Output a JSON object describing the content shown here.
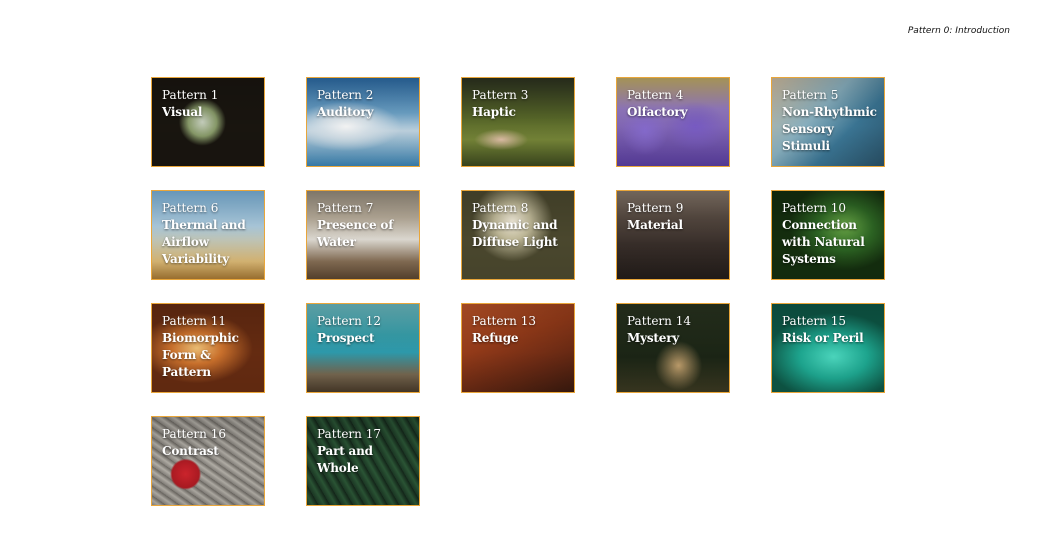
{
  "header": {
    "title": "Pattern 0: Introduction"
  },
  "tiles": [
    {
      "number": "Pattern 1",
      "label": "Visual",
      "image": "img-visual"
    },
    {
      "number": "Pattern 2",
      "label": "Auditory",
      "image": "img-auditory"
    },
    {
      "number": "Pattern 3",
      "label": "Haptic",
      "image": "img-haptic"
    },
    {
      "number": "Pattern 4",
      "label": "Olfactory",
      "image": "img-olfactory"
    },
    {
      "number": "Pattern 5",
      "label": "Non-Rhythmic Sensory Stimuli",
      "image": "img-nonrhythmic"
    },
    {
      "number": "Pattern 6",
      "label": "Thermal and Airflow Variability",
      "image": "img-thermal"
    },
    {
      "number": "Pattern 7",
      "label": "Presence of Water",
      "image": "img-water"
    },
    {
      "number": "Pattern 8",
      "label": "Dynamic and Diffuse Light",
      "image": "img-light"
    },
    {
      "number": "Pattern 9",
      "label": "Material",
      "image": "img-material"
    },
    {
      "number": "Pattern 10",
      "label": "Connection with Natural Systems",
      "image": "img-natural"
    },
    {
      "number": "Pattern 11",
      "label": "Biomorphic Form & Pattern",
      "image": "img-biomorphic"
    },
    {
      "number": "Pattern 12",
      "label": "Prospect",
      "image": "img-prospect"
    },
    {
      "number": "Pattern 13",
      "label": "Refuge",
      "image": "img-refuge"
    },
    {
      "number": "Pattern 14",
      "label": "Mystery",
      "image": "img-mystery"
    },
    {
      "number": "Pattern 15",
      "label": "Risk or Peril",
      "image": "img-risk"
    },
    {
      "number": "Pattern 16",
      "label": "Contrast",
      "image": "img-contrast"
    },
    {
      "number": "Pattern 17",
      "label": "Part and Whole",
      "image": "img-partwhole"
    }
  ],
  "colors": {
    "tile_border": "#e9a63a"
  }
}
